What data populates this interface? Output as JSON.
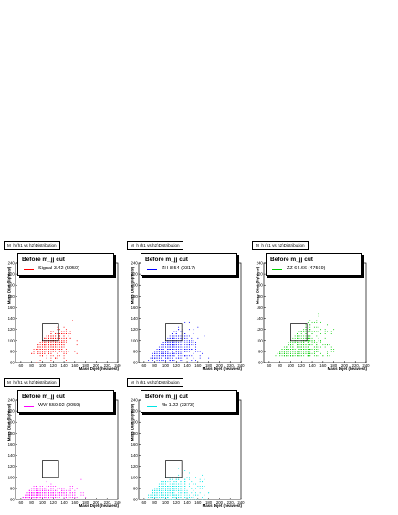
{
  "chart_data": [
    {
      "type": "scatter",
      "title": "M_h (h1 vs h2)Distribution",
      "legend_header": "Before m_jj cut",
      "series_label": "Signal 3.42 (5950)",
      "color": "#ff0000",
      "xlabel": "Mass Dijet (heaviest)",
      "ylabel": "Mass Dijet (lightest)",
      "xlim": [
        50,
        240
      ],
      "ylim": [
        60,
        240
      ],
      "xticks": [
        "60",
        "80",
        "100",
        "120",
        "140",
        "160",
        "180",
        "200",
        "220",
        "240"
      ],
      "yticks": [
        "60",
        "80",
        "100",
        "120",
        "140",
        "160",
        "180",
        "200",
        "220",
        "240"
      ],
      "signal_box": {
        "x": [
          100,
          130
        ],
        "y": [
          100,
          130
        ]
      },
      "cluster": {
        "center": [
          112,
          98
        ],
        "spread": [
          20,
          14
        ],
        "xmax": 175,
        "xmin": 60,
        "ymin": 60
      }
    },
    {
      "type": "scatter",
      "title": "M_h (h1 vs h2)Distribution",
      "legend_header": "Before m_jj cut",
      "series_label": "ZH 8.54 (9317)",
      "color": "#0000ff",
      "xlabel": "Mass Dijet (heaviest)",
      "ylabel": "Mass Dijet (lightest)",
      "xlim": [
        50,
        240
      ],
      "ylim": [
        60,
        240
      ],
      "xticks": [
        "60",
        "80",
        "100",
        "120",
        "140",
        "160",
        "180",
        "200",
        "220",
        "240"
      ],
      "yticks": [
        "60",
        "80",
        "100",
        "120",
        "140",
        "160",
        "180",
        "200",
        "220",
        "240"
      ],
      "signal_box": {
        "x": [
          100,
          130
        ],
        "y": [
          100,
          130
        ]
      },
      "cluster": {
        "center": [
          105,
          88
        ],
        "spread": [
          26,
          18
        ],
        "xmax": 185,
        "xmin": 60,
        "ymin": 60
      }
    },
    {
      "type": "scatter",
      "title": "M_h (h1 vs h2)Distribution",
      "legend_header": "Before m_jj cut",
      "series_label": "ZZ 64.66 (47569)",
      "color": "#00cc00",
      "xlabel": "Mass Dijet (heaviest)",
      "ylabel": "Mass Dijet (lightest)",
      "xlim": [
        50,
        240
      ],
      "ylim": [
        60,
        240
      ],
      "xticks": [
        "60",
        "80",
        "100",
        "120",
        "140",
        "160",
        "180",
        "200",
        "220",
        "240"
      ],
      "yticks": [
        "60",
        "80",
        "100",
        "120",
        "140",
        "160",
        "180",
        "200",
        "220",
        "240"
      ],
      "signal_box": {
        "x": [
          100,
          130
        ],
        "y": [
          100,
          130
        ]
      },
      "cluster": {
        "center": [
          95,
          82
        ],
        "spread": [
          40,
          40
        ],
        "xmax": 180,
        "xmin": 70,
        "ymin": 70
      }
    },
    {
      "type": "scatter",
      "title": "M_h (h1 vs h2)Distribution",
      "legend_header": "Before m_jj cut",
      "series_label": "WW 559.92 (9059)",
      "color": "#ff00ff",
      "xlabel": "Mass Dijet (heaviest)",
      "ylabel": "Mass Dijet (lightest)",
      "xlim": [
        50,
        240
      ],
      "ylim": [
        60,
        240
      ],
      "xticks": [
        "60",
        "80",
        "100",
        "120",
        "140",
        "160",
        "180",
        "200",
        "220",
        "240"
      ],
      "yticks": [
        "60",
        "80",
        "100",
        "120",
        "140",
        "160",
        "180",
        "200",
        "220",
        "240"
      ],
      "signal_box": {
        "x": [
          100,
          130
        ],
        "y": [
          100,
          130
        ]
      },
      "cluster": {
        "center": [
          85,
          68
        ],
        "spread": [
          40,
          8
        ],
        "xmax": 180,
        "xmin": 62,
        "ymin": 60
      }
    },
    {
      "type": "scatter",
      "title": "M_h (h1 vs h2)Distribution",
      "legend_header": "Before m_jj cut",
      "series_label": "4b 1.22 (3373)",
      "color": "#00e5e5",
      "xlabel": "Mass Dijet (heaviest)",
      "ylabel": "Mass Dijet (lightest)",
      "xlim": [
        50,
        240
      ],
      "ylim": [
        60,
        240
      ],
      "xticks": [
        "60",
        "80",
        "100",
        "120",
        "140",
        "160",
        "180",
        "200",
        "220",
        "240"
      ],
      "yticks": [
        "60",
        "80",
        "100",
        "120",
        "140",
        "160",
        "180",
        "200",
        "220",
        "240"
      ],
      "signal_box": {
        "x": [
          100,
          130
        ],
        "y": [
          100,
          130
        ]
      },
      "cluster": {
        "center": [
          95,
          75
        ],
        "spread": [
          35,
          14
        ],
        "xmax": 185,
        "xmin": 62,
        "ymin": 60
      }
    }
  ]
}
